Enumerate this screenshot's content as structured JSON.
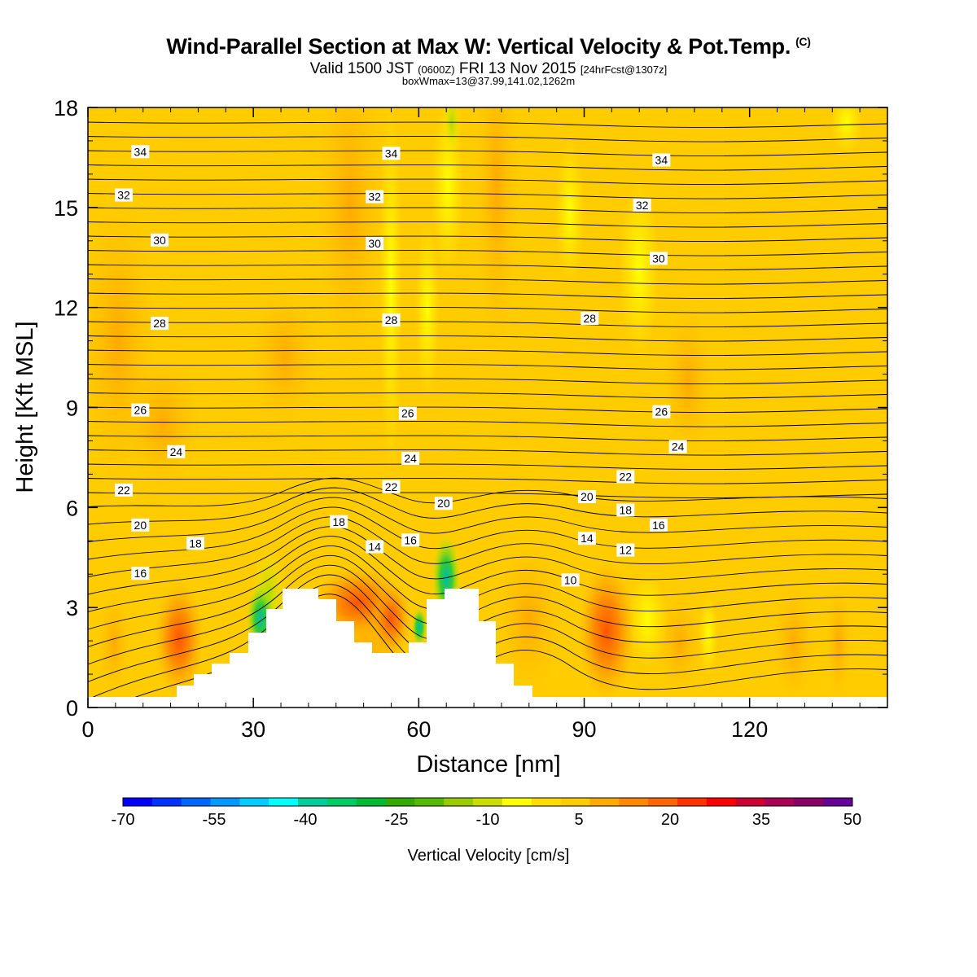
{
  "title": "Wind-Parallel Section at Max W: Vertical Velocity & Pot.Temp.",
  "copyright": "(C)",
  "subtitle_main": "Valid 1500 JST",
  "subtitle_utc": "(0600Z)",
  "subtitle_date": "FRI 13 Nov 2015",
  "subtitle_fcst": "[24hrFcst@1307z]",
  "subtitle2": "boxWmax=13@37.99,141.02,1262m",
  "chart_data": {
    "type": "heatmap",
    "xlabel": "Distance [nm]",
    "ylabel": "Height [Kft MSL]",
    "xlim": [
      0,
      145
    ],
    "ylim": [
      0,
      18
    ],
    "x_ticks": [
      0,
      30,
      60,
      90,
      120
    ],
    "y_ticks": [
      0,
      3,
      6,
      9,
      12,
      15,
      18
    ],
    "colorbar": {
      "label": "Vertical Velocity [cm/s]",
      "tick_labels": [
        "-70",
        "-55",
        "-40",
        "-25",
        "-10",
        "5",
        "20",
        "35",
        "50"
      ],
      "tick_values": [
        -70,
        -55,
        -40,
        -25,
        -10,
        5,
        20,
        35,
        50
      ],
      "colors": [
        "#0000ff",
        "#0033ff",
        "#0066ff",
        "#0099ff",
        "#00ccff",
        "#00ffff",
        "#00cc99",
        "#00cc66",
        "#00bb33",
        "#33aa00",
        "#55bb00",
        "#99cc00",
        "#ccdd00",
        "#ffff00",
        "#ffdd00",
        "#ffcc00",
        "#ffaa00",
        "#ff8800",
        "#ff6600",
        "#ff3300",
        "#ff0000",
        "#cc0033",
        "#aa0055",
        "#880066",
        "#660099"
      ]
    },
    "contour_labels": [
      {
        "text": "34",
        "x": 9.5,
        "y": 16.65
      },
      {
        "text": "34",
        "x": 55,
        "y": 16.6
      },
      {
        "text": "34",
        "x": 104,
        "y": 16.4
      },
      {
        "text": "32",
        "x": 6.5,
        "y": 15.35
      },
      {
        "text": "32",
        "x": 52,
        "y": 15.3
      },
      {
        "text": "32",
        "x": 100.5,
        "y": 15.05
      },
      {
        "text": "30",
        "x": 13,
        "y": 14.0
      },
      {
        "text": "30",
        "x": 52,
        "y": 13.9
      },
      {
        "text": "30",
        "x": 103.5,
        "y": 13.45
      },
      {
        "text": "28",
        "x": 13,
        "y": 11.5
      },
      {
        "text": "28",
        "x": 55,
        "y": 11.6
      },
      {
        "text": "28",
        "x": 91,
        "y": 11.65
      },
      {
        "text": "26",
        "x": 9.5,
        "y": 8.9
      },
      {
        "text": "26",
        "x": 58,
        "y": 8.8
      },
      {
        "text": "26",
        "x": 104,
        "y": 8.85
      },
      {
        "text": "24",
        "x": 16,
        "y": 7.65
      },
      {
        "text": "24",
        "x": 58.5,
        "y": 7.45
      },
      {
        "text": "24",
        "x": 107,
        "y": 7.8
      },
      {
        "text": "22",
        "x": 6.5,
        "y": 6.5
      },
      {
        "text": "22",
        "x": 55,
        "y": 6.6
      },
      {
        "text": "22",
        "x": 97.5,
        "y": 6.9
      },
      {
        "text": "20",
        "x": 9.5,
        "y": 5.45
      },
      {
        "text": "20",
        "x": 64.5,
        "y": 6.1
      },
      {
        "text": "20",
        "x": 90.5,
        "y": 6.3
      },
      {
        "text": "18",
        "x": 19.5,
        "y": 4.9
      },
      {
        "text": "18",
        "x": 45.5,
        "y": 5.55
      },
      {
        "text": "18",
        "x": 97.5,
        "y": 5.9
      },
      {
        "text": "16",
        "x": 9.5,
        "y": 4.0
      },
      {
        "text": "16",
        "x": 58.5,
        "y": 5.0
      },
      {
        "text": "16",
        "x": 103.5,
        "y": 5.45
      },
      {
        "text": "14",
        "x": 52,
        "y": 4.8
      },
      {
        "text": "14",
        "x": 90.5,
        "y": 5.05
      },
      {
        "text": "12",
        "x": 97.5,
        "y": 4.7
      },
      {
        "text": "10",
        "x": 87.5,
        "y": 3.8
      }
    ]
  }
}
